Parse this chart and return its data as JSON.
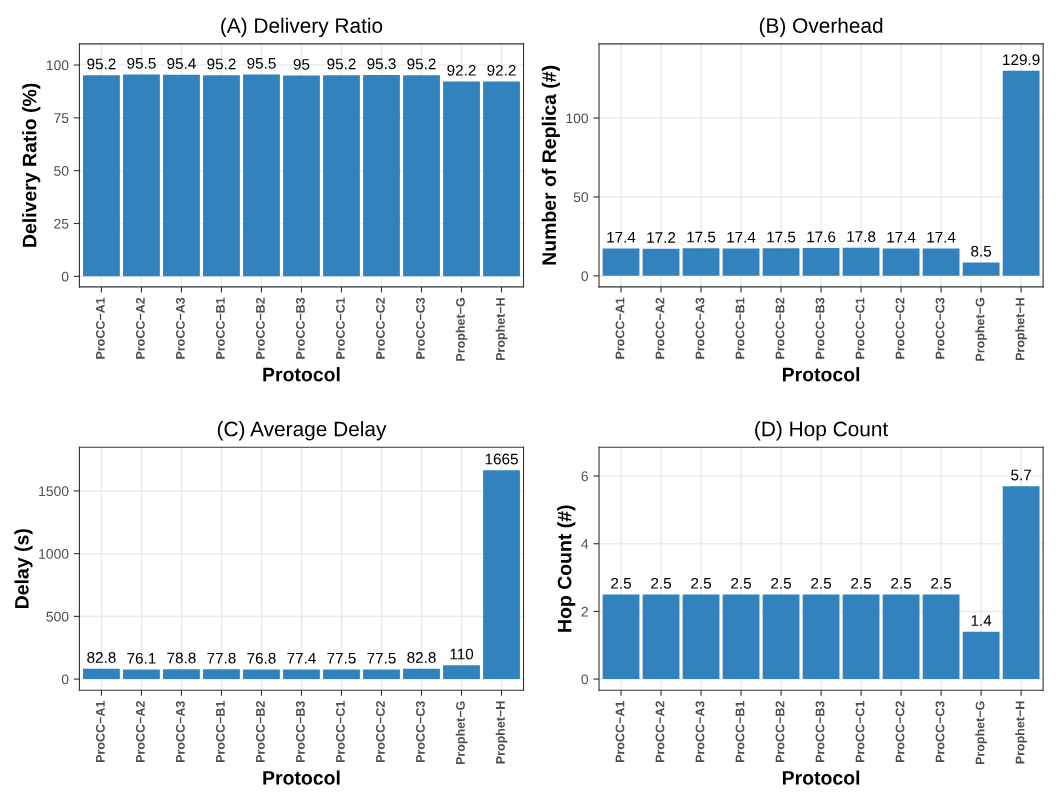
{
  "chart_data": [
    {
      "type": "bar",
      "title": "(A) Delivery Ratio",
      "xlabel": "Protocol",
      "ylabel": "Delivery Ratio (%)",
      "categories": [
        "ProCC−A1",
        "ProCC−A2",
        "ProCC−A3",
        "ProCC−B1",
        "ProCC−B2",
        "ProCC−B3",
        "ProCC−C1",
        "ProCC−C2",
        "ProCC−C3",
        "Prophet−G",
        "Prophet−H"
      ],
      "values": [
        95.2,
        95.5,
        95.4,
        95.2,
        95.5,
        95,
        95.2,
        95.3,
        95.2,
        92.2,
        92.2
      ],
      "color": "#3182bd",
      "ylim": [
        -5,
        110
      ],
      "yticks": [
        0,
        25,
        50,
        75,
        100
      ],
      "grid": true,
      "data_labels": true
    },
    {
      "type": "bar",
      "title": "(B) Overhead",
      "xlabel": "Protocol",
      "ylabel": "Number of Replica (#)",
      "categories": [
        "ProCC−A1",
        "ProCC−A2",
        "ProCC−A3",
        "ProCC−B1",
        "ProCC−B2",
        "ProCC−B3",
        "ProCC−C1",
        "ProCC−C2",
        "ProCC−C3",
        "Prophet−G",
        "Prophet−H"
      ],
      "values": [
        17.4,
        17.2,
        17.5,
        17.4,
        17.5,
        17.6,
        17.8,
        17.4,
        17.4,
        8.5,
        129.9
      ],
      "color": "#3182bd",
      "ylim": [
        -7,
        147
      ],
      "yticks": [
        0,
        50,
        100
      ],
      "grid": true,
      "data_labels": true
    },
    {
      "type": "bar",
      "title": "(C) Average Delay",
      "xlabel": "Protocol",
      "ylabel": "Delay (s)",
      "categories": [
        "ProCC−A1",
        "ProCC−A2",
        "ProCC−A3",
        "ProCC−B1",
        "ProCC−B2",
        "ProCC−B3",
        "ProCC−C1",
        "ProCC−C2",
        "ProCC−C3",
        "Prophet−G",
        "Prophet−H"
      ],
      "values": [
        82.8,
        76.1,
        78.8,
        77.8,
        76.8,
        77.4,
        77.5,
        77.5,
        82.8,
        110,
        1665
      ],
      "color": "#3182bd",
      "ylim": [
        -89,
        1848
      ],
      "yticks": [
        0,
        500,
        1000,
        1500
      ],
      "grid": true,
      "data_labels": true
    },
    {
      "type": "bar",
      "title": "(D) Hop Count",
      "xlabel": "Protocol",
      "ylabel": "Hop Count (#)",
      "categories": [
        "ProCC−A1",
        "ProCC−A2",
        "ProCC−A3",
        "ProCC−B1",
        "ProCC−B2",
        "ProCC−B3",
        "ProCC−C1",
        "ProCC−C2",
        "ProCC−C3",
        "Prophet−G",
        "Prophet−H"
      ],
      "values": [
        2.5,
        2.5,
        2.5,
        2.5,
        2.5,
        2.5,
        2.5,
        2.5,
        2.5,
        1.4,
        5.7
      ],
      "color": "#3182bd",
      "ylim": [
        -0.33,
        6.85
      ],
      "yticks": [
        0,
        2,
        4,
        6
      ],
      "grid": true,
      "data_labels": true
    }
  ]
}
